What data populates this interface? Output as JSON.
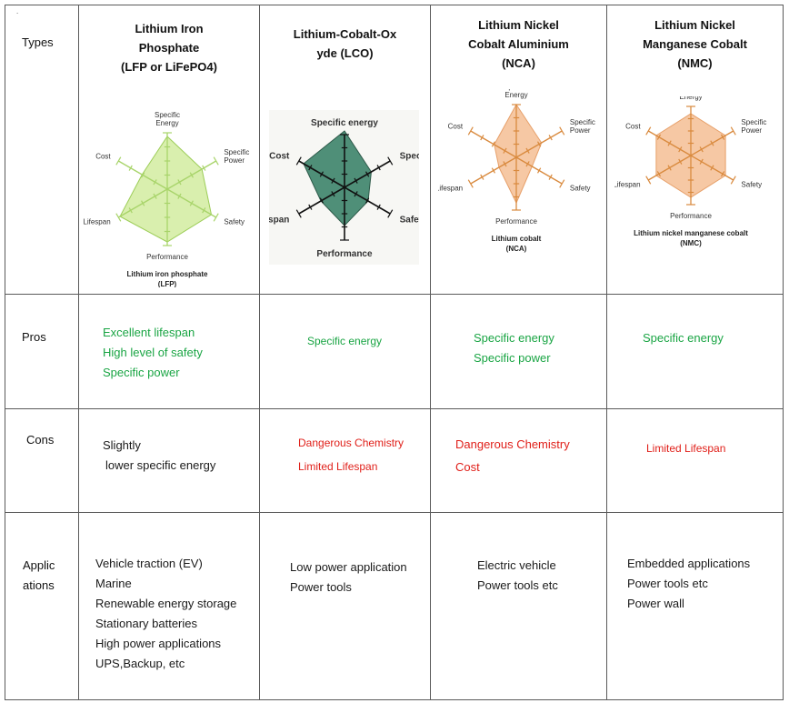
{
  "rows": {
    "types": "Types",
    "pros": "Pros",
    "cons": "Cons",
    "applications": [
      "Applic",
      "ations"
    ]
  },
  "columns": [
    {
      "header": [
        "Lithium Iron",
        "Phosphate",
        "(LFP or LiFePO4)"
      ],
      "chart": {
        "axes": [
          "Specific Energy",
          "Specific Power",
          "Safety",
          "Performance",
          "Lifespan",
          "Cost"
        ],
        "title_lines": [
          "Lithium iron phosphate",
          "(LFP)"
        ],
        "fill": "#d9efae",
        "stroke": "#9ccd57",
        "axis_color": "#a8d46a"
      },
      "pros": [
        "Excellent lifespan",
        "High level of safety",
        "Specific power"
      ],
      "cons": [
        "Slightly",
        "lower  specific energy"
      ],
      "applications": [
        "Vehicle traction (EV)",
        "Marine",
        "Renewable  energy storage",
        "Stationary batteries",
        "High  power  applications",
        "UPS,Backup, etc"
      ]
    },
    {
      "header": [
        "Lithium-Cobalt-Ox",
        "yde (LCO)"
      ],
      "chart": {
        "axes": [
          "Specific energy",
          "Specific power",
          "Safety",
          "Performance",
          "Life span",
          "Cost"
        ],
        "fill": "#4f8f78",
        "stroke": "#2e5a4a",
        "axis_color": "#111111"
      },
      "pros": [
        "Specific energy"
      ],
      "cons": [
        "Dangerous Chemistry",
        "Limited Lifespan"
      ],
      "applications": [
        "Low power  application",
        "Power tools"
      ]
    },
    {
      "header": [
        "Lithium Nickel",
        "Cobalt Aluminium",
        "(NCA)"
      ],
      "chart": {
        "axes": [
          "Specific Energy",
          "Specific Power",
          "Safety",
          "Performance",
          "Lifespan",
          "Cost"
        ],
        "title_lines": [
          "Lithium cobalt",
          "(NCA)"
        ],
        "fill": "#f6c8a4",
        "stroke": "#e7a06a",
        "axis_color": "#d98a3e"
      },
      "pros": [
        "Specific energy",
        "Specific power"
      ],
      "cons": [
        "Dangerous  Chemistry",
        "Cost"
      ],
      "applications": [
        "Electric vehicle",
        "Power tools etc"
      ]
    },
    {
      "header": [
        "Lithium Nickel",
        "Manganese Cobalt",
        "(NMC)"
      ],
      "chart": {
        "axes": [
          "Specific Energy",
          "Specific Power",
          "Safety",
          "Performance",
          "Lifespan",
          "Cost"
        ],
        "title_lines": [
          "Lithium nickel manganese cobalt",
          "(NMC)"
        ],
        "fill": "#f6c8a4",
        "stroke": "#e7a06a",
        "axis_color": "#d98a3e"
      },
      "pros": [
        "Specific energy"
      ],
      "cons": [
        "Limited Lifespan"
      ],
      "applications": [
        "Embedded  applications",
        "Power tools etc",
        "Power wall"
      ]
    }
  ]
}
